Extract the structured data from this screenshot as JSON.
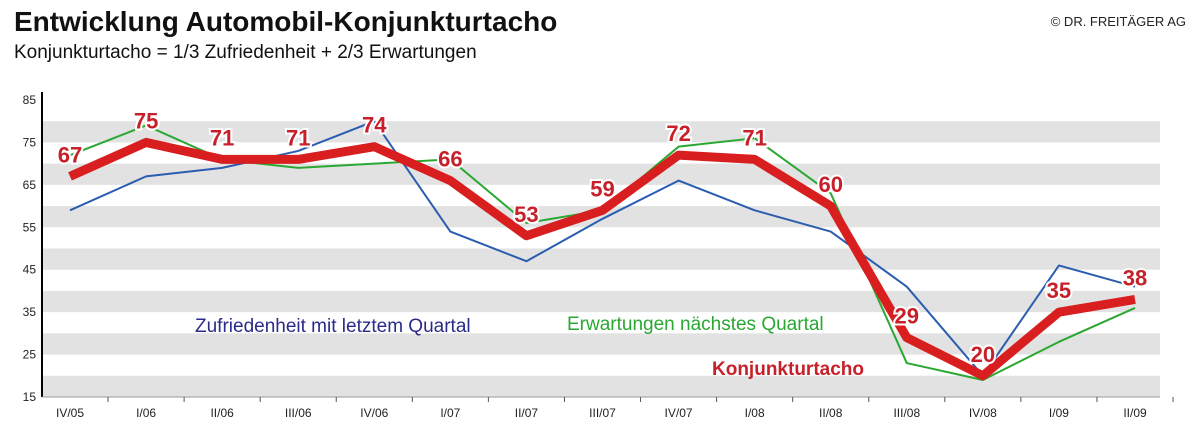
{
  "title": "Entwicklung Automobil-Konjunkturtacho",
  "subtitle": "Konjunkturtacho  = 1/3 Zufriedenheit + 2/3 Erwartungen",
  "copyright": "© DR. FREITÄGER AG",
  "chart_data": {
    "type": "line",
    "title": "Entwicklung Automobil-Konjunkturtacho",
    "xlabel": "",
    "ylabel": "",
    "ylim": [
      15,
      85
    ],
    "yticks": [
      15,
      25,
      35,
      45,
      55,
      65,
      75,
      85
    ],
    "grid": "alternating horizontal bands",
    "categories": [
      "IV/05",
      "I/06",
      "II/06",
      "III/06",
      "IV/06",
      "I/07",
      "II/07",
      "III/07",
      "IV/07",
      "I/08",
      "II/08",
      "III/08",
      "IV/08",
      "I/09",
      "II/09"
    ],
    "series": [
      {
        "name": "Zufriedenheit mit letztem Quartal",
        "color": "#2a5db0",
        "values": [
          59,
          67,
          69,
          73,
          80,
          54,
          47,
          57,
          66,
          59,
          54,
          41,
          20,
          46,
          41
        ]
      },
      {
        "name": "Erwartungen nächstes Quartal",
        "color": "#2aa832",
        "values": [
          72,
          79,
          71,
          69,
          70,
          71,
          56,
          59,
          74,
          76,
          63,
          23,
          19,
          28,
          36
        ]
      },
      {
        "name": "Konjunkturtacho",
        "color": "#d81e1e",
        "values": [
          67,
          75,
          71,
          71,
          74,
          66,
          53,
          59,
          72,
          71,
          60,
          29,
          20,
          35,
          38
        ],
        "labels": [
          "67",
          "75",
          "71",
          "71",
          "74",
          "66",
          "53",
          "59",
          "72",
          "71",
          "60",
          "29",
          "20",
          "35",
          "38"
        ]
      }
    ]
  }
}
